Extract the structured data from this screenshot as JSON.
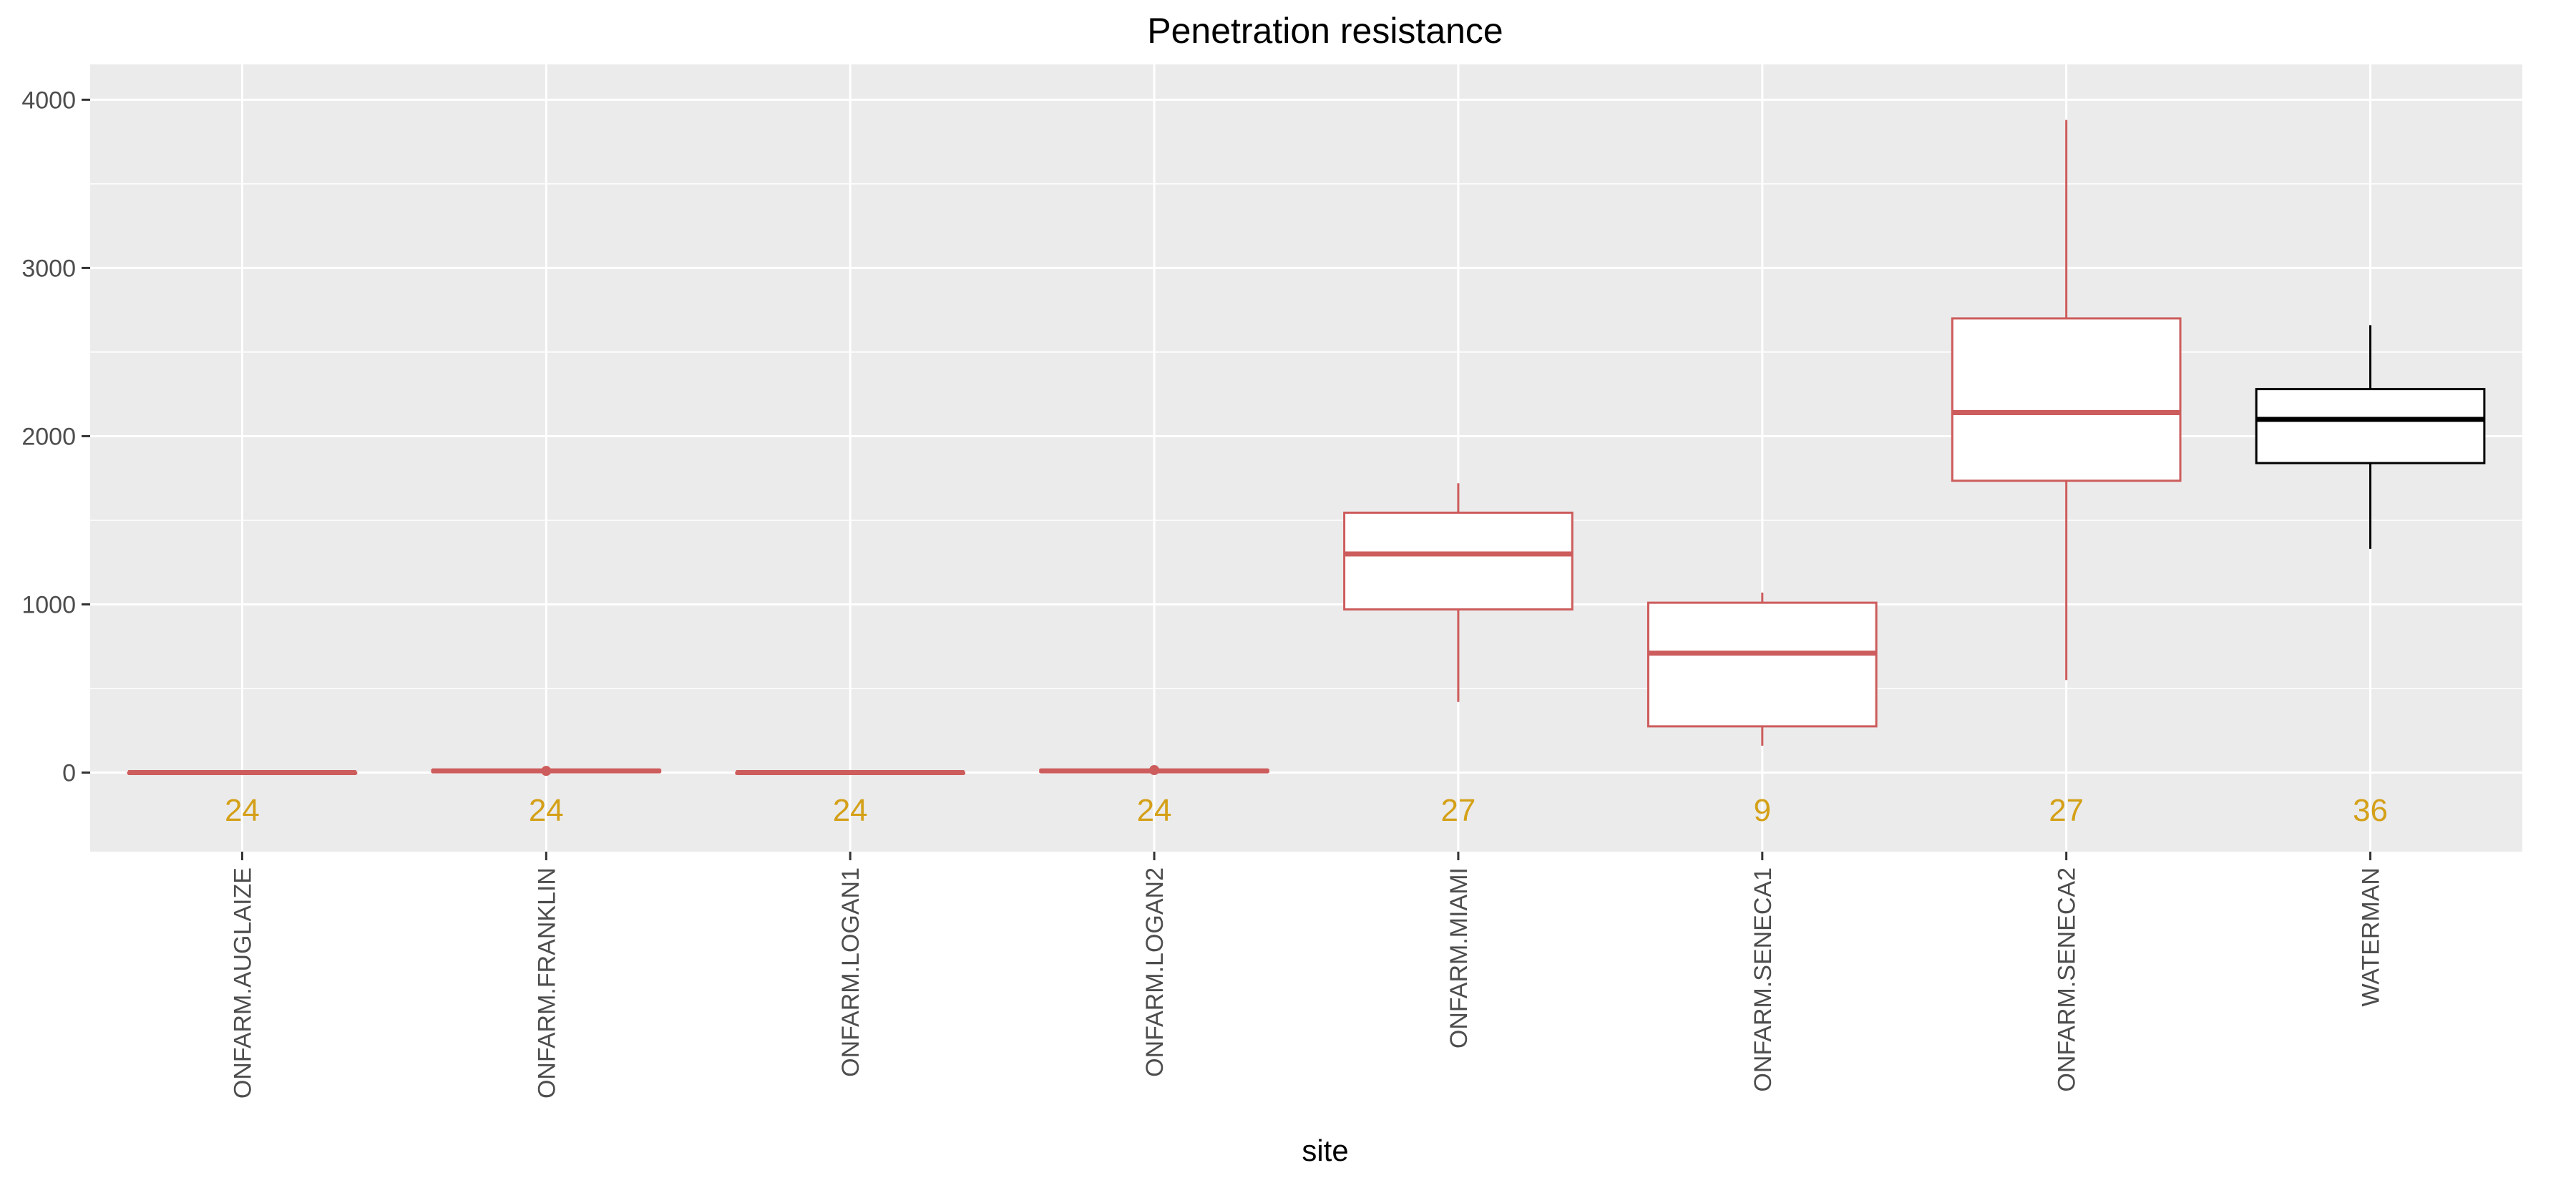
{
  "chart_data": {
    "type": "box",
    "title": "Penetration resistance",
    "xlabel": "site",
    "ylabel": "",
    "ylim": [
      -470,
      4210
    ],
    "yticks": [
      0,
      1000,
      2000,
      3000,
      4000
    ],
    "grid": true,
    "legend": "none",
    "categories": [
      "ONFARM.AUGLAIZE",
      "ONFARM.FRANKLIN",
      "ONFARM.LOGAN1",
      "ONFARM.LOGAN2",
      "ONFARM.MIAMI",
      "ONFARM.SENECA1",
      "ONFARM.SENECA2",
      "WATERMAN"
    ],
    "boxes": [
      {
        "min": 0,
        "q1": 0,
        "median": 0,
        "q3": 0,
        "max": 0,
        "n": "24",
        "color": "#cd5c5c"
      },
      {
        "min": 5,
        "q1": 5,
        "median": 10,
        "q3": 15,
        "max": 15,
        "n": "24",
        "color": "#cd5c5c",
        "outliers": [
          10
        ]
      },
      {
        "min": 0,
        "q1": 0,
        "median": 0,
        "q3": 0,
        "max": 0,
        "n": "24",
        "color": "#cd5c5c"
      },
      {
        "min": 5,
        "q1": 5,
        "median": 10,
        "q3": 15,
        "max": 15,
        "n": "24",
        "color": "#cd5c5c",
        "outliers": [
          15
        ]
      },
      {
        "min": 420,
        "q1": 970,
        "median": 1300,
        "q3": 1545,
        "max": 1720,
        "n": "27",
        "color": "#cd5c5c"
      },
      {
        "min": 160,
        "q1": 275,
        "median": 710,
        "q3": 1010,
        "max": 1070,
        "n": "9",
        "color": "#cd5c5c"
      },
      {
        "min": 550,
        "q1": 1735,
        "median": 2140,
        "q3": 2700,
        "max": 3880,
        "n": "27",
        "color": "#cd5c5c"
      },
      {
        "min": 1330,
        "q1": 1840,
        "median": 2100,
        "q3": 2280,
        "max": 2660,
        "n": "36",
        "color": "#000000"
      }
    ],
    "count_label_color": "#d4a017",
    "count_label_y": -220,
    "panel_background": "#ebebeb",
    "gridline_color": "#ffffff"
  }
}
